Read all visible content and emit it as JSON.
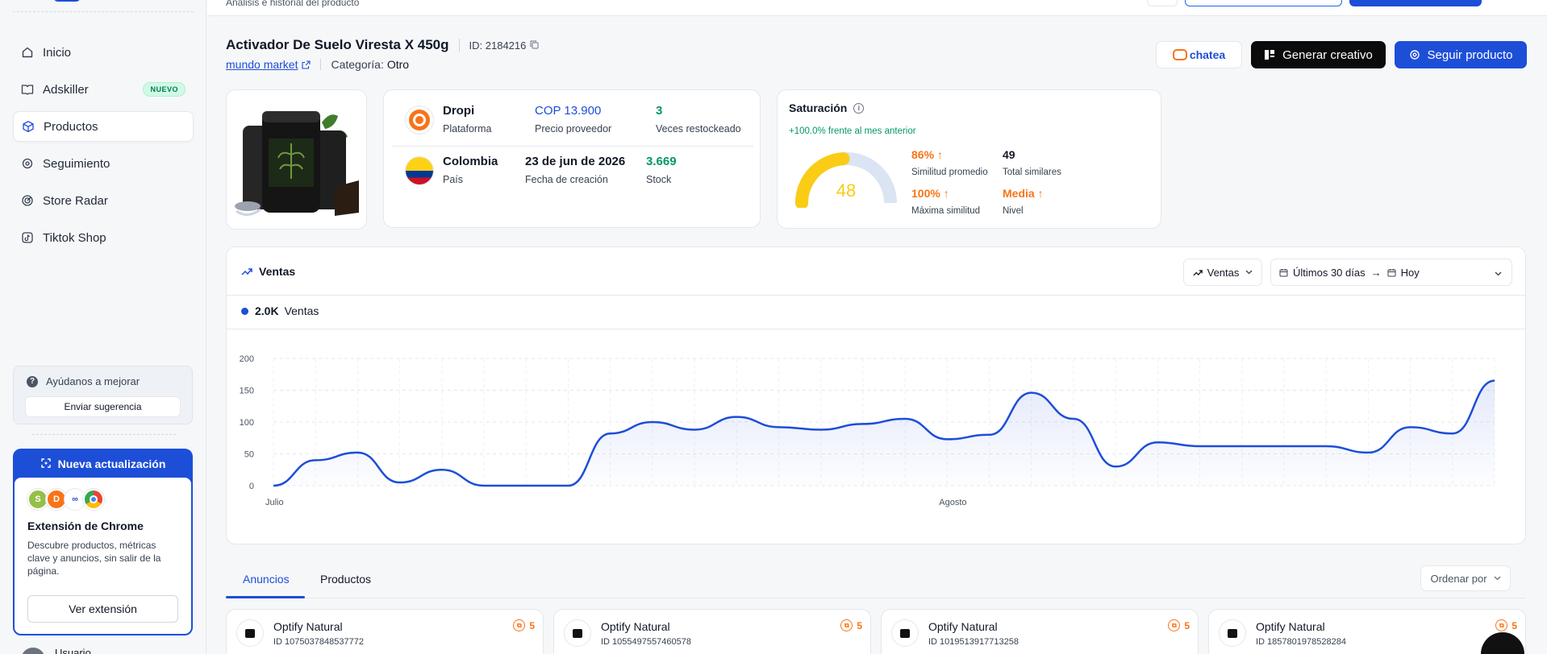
{
  "breadcrumb_sub": "Análisis e historial del producto",
  "sidebar": {
    "items": [
      {
        "label": "Inicio",
        "icon": "home-icon",
        "active": false
      },
      {
        "label": "Adskiller",
        "icon": "book-icon",
        "active": false,
        "badge": "NUEVO"
      },
      {
        "label": "Productos",
        "icon": "cube-icon",
        "active": true
      },
      {
        "label": "Seguimiento",
        "icon": "target-icon",
        "active": false
      },
      {
        "label": "Store Radar",
        "icon": "radar-icon",
        "active": false
      },
      {
        "label": "Tiktok Shop",
        "icon": "tiktok-icon",
        "active": false
      }
    ],
    "help_title": "Ayúdanos a mejorar",
    "help_button": "Enviar sugerencia",
    "update": {
      "header": "Nueva actualización",
      "title": "Extensión de Chrome",
      "description": "Descubre productos, métricas clave y anuncios, sin salir de la página.",
      "button": "Ver extensión"
    },
    "user_name": "Usuario"
  },
  "product": {
    "title": "Activador De Suelo Viresta X 450g",
    "id_text": "ID: 2184216",
    "store": "mundo market",
    "category_label": "Categoría:",
    "category_value": "Otro"
  },
  "actions": {
    "chatea": "chatea",
    "generate": "Generar creativo",
    "follow": "Seguir producto"
  },
  "info": {
    "platform": "Dropi",
    "platform_label": "Plataforma",
    "price": "COP 13.900",
    "price_label": "Precio proveedor",
    "restock": "3",
    "restock_label": "Veces restockeado",
    "country": "Colombia",
    "country_label": "País",
    "created": "23 de jun de 2026",
    "created_label": "Fecha de creación",
    "stock": "3.669",
    "stock_label": "Stock"
  },
  "saturation": {
    "title": "Saturación",
    "delta": "+100.0% frente al mes anterior",
    "score": "48",
    "score_value": 48,
    "avg_similarity": "86%",
    "avg_similarity_label": "Similitud promedio",
    "total_similar": "49",
    "total_similar_label": "Total similares",
    "max_similarity": "100%",
    "max_similarity_label": "Máxima similitud",
    "level": "Media",
    "level_label": "Nivel",
    "colors": {
      "gauge": "#facc15",
      "track": "#dbe4f3",
      "accent": "#f97316"
    }
  },
  "sales": {
    "title": "Ventas",
    "metric_select": "Ventas",
    "range_from": "Últimos 30 días",
    "range_to": "Hoy",
    "legend_value": "2.0K",
    "legend_label": "Ventas"
  },
  "chart_data": {
    "type": "area",
    "x_tick_labels": [
      "Julio",
      "Agosto"
    ],
    "ylim": [
      0,
      200
    ],
    "y_ticks": [
      0,
      50,
      100,
      150,
      200
    ],
    "grid": true,
    "series": [
      {
        "name": "Ventas",
        "color": "#1d4ed8",
        "values": [
          0,
          40,
          52,
          5,
          25,
          0,
          0,
          0,
          82,
          100,
          88,
          108,
          92,
          88,
          97,
          105,
          73,
          80,
          146,
          105,
          30,
          68,
          62,
          62,
          62,
          62,
          52,
          92,
          82,
          165
        ]
      }
    ]
  },
  "tabs": {
    "ads": "Anuncios",
    "products": "Productos",
    "order": "Ordenar por"
  },
  "ads": [
    {
      "name": "Optify Natural",
      "id": "ID 1075037848537772",
      "count": "5"
    },
    {
      "name": "Optify Natural",
      "id": "ID 1055497557460578",
      "count": "5"
    },
    {
      "name": "Optify Natural",
      "id": "ID 1019513917713258",
      "count": "5"
    },
    {
      "name": "Optify Natural",
      "id": "ID 1857801978528284",
      "count": "5"
    }
  ]
}
